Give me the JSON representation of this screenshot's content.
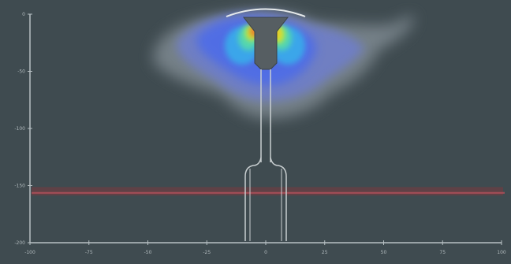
{
  "chart_data": {
    "type": "heatmap",
    "title": "",
    "xlabel": "",
    "ylabel": "",
    "x_ticks": [
      "-100",
      "-75",
      "-50",
      "-25",
      "0",
      "25",
      "50",
      "75",
      "100"
    ],
    "y_ticks": [
      "0",
      "-50",
      "-100",
      "-150",
      "-200"
    ],
    "xlim": [
      -100,
      100
    ],
    "ylim": [
      -200,
      0
    ],
    "x_axis_zero_at": 0,
    "reference_bands": [
      {
        "y_from": -152,
        "y_to": -158,
        "color": "#8b3a3f"
      }
    ],
    "colormap": [
      "#7f8a92",
      "#6f7fc6",
      "#4f6de6",
      "#3aa6ea",
      "#52d6b0",
      "#c6e63a",
      "#f3c320",
      "#f0762a"
    ],
    "grid": false,
    "legend": "none"
  },
  "colors": {
    "background": "#3f4b50",
    "axis": "#b7c0c3",
    "well_outline": "#c9cfd1",
    "band_outer": "#7a3a3e",
    "band_inner": "#b0505a"
  }
}
